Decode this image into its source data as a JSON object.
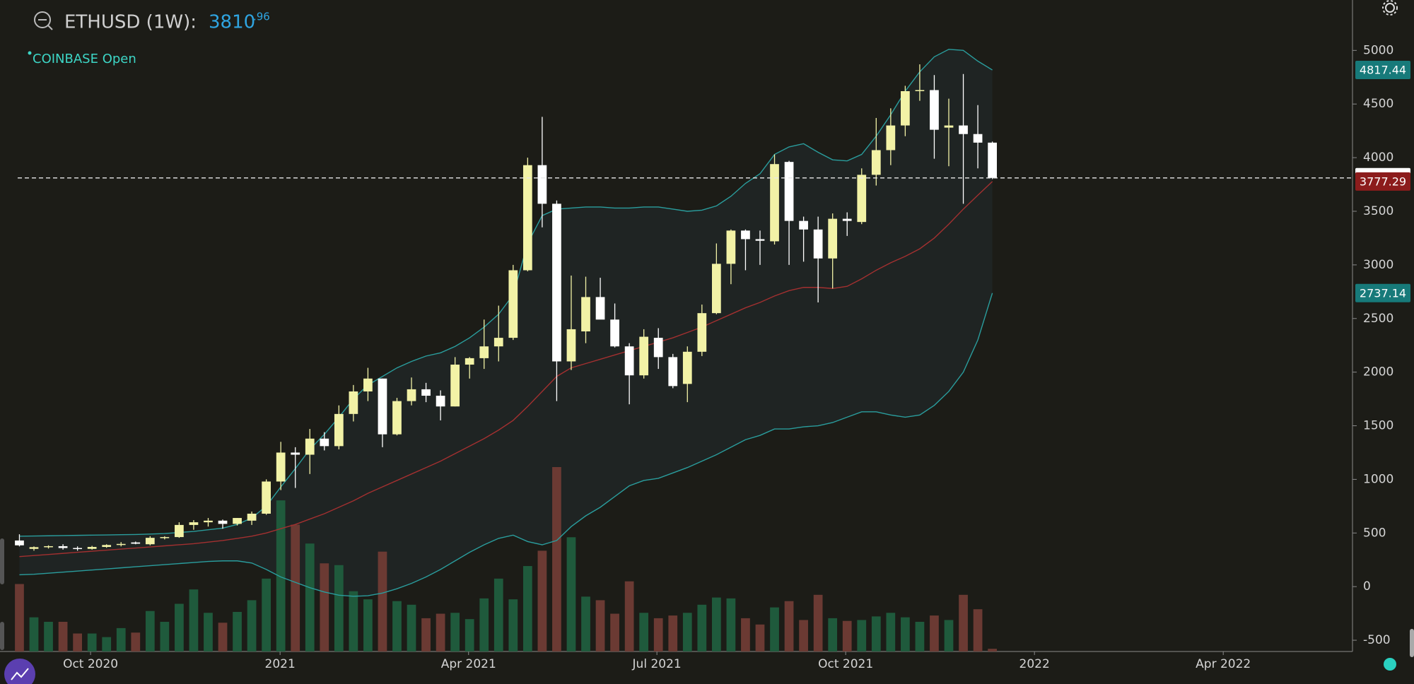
{
  "chart_data": {
    "type": "candlestick",
    "title": "ETHUSD (1W):",
    "price": "3810",
    "price_decimals": ".96",
    "exchange": "COINBASE Open",
    "x": [
      0,
      1,
      2,
      3,
      4,
      5,
      6,
      7,
      8,
      9,
      10,
      11,
      12,
      13,
      14,
      15,
      16,
      17,
      18,
      19,
      20,
      21,
      22,
      23,
      24,
      25,
      26,
      27,
      28,
      29,
      30,
      31,
      32,
      33,
      34,
      35,
      36,
      37,
      38,
      39,
      40,
      41,
      42,
      43,
      44,
      45,
      46,
      47,
      48,
      49,
      50,
      51,
      52,
      53,
      54,
      55,
      56,
      57,
      58,
      59,
      60,
      61,
      62,
      63,
      64,
      65,
      66,
      67
    ],
    "open": [
      430,
      352,
      368,
      377,
      360,
      352,
      370,
      388,
      412,
      395,
      455,
      462,
      575,
      600,
      615,
      585,
      615,
      680,
      980,
      1250,
      1230,
      1380,
      1310,
      1610,
      1820,
      1940,
      1420,
      1730,
      1840,
      1780,
      1680,
      2070,
      2130,
      2240,
      2320,
      2950,
      3930,
      3570,
      2100,
      2380,
      2700,
      2490,
      2240,
      1970,
      2320,
      2140,
      1890,
      2190,
      2550,
      3010,
      3320,
      3240,
      3220,
      3960,
      3410,
      3330,
      3060,
      3430,
      3400,
      3840,
      4070,
      4300,
      4620,
      4630,
      4280,
      4300,
      4220,
      4140
    ],
    "high": [
      488,
      375,
      385,
      395,
      375,
      380,
      395,
      415,
      420,
      470,
      470,
      600,
      620,
      640,
      625,
      640,
      700,
      1000,
      1350,
      1300,
      1470,
      1440,
      1690,
      1880,
      2040,
      1940,
      1760,
      1950,
      1900,
      1830,
      2140,
      2140,
      2490,
      2620,
      3000,
      4000,
      4380,
      3600,
      2900,
      2890,
      2880,
      2640,
      2270,
      2400,
      2410,
      2170,
      2240,
      2630,
      3200,
      3330,
      3330,
      3320,
      4030,
      3970,
      3450,
      3450,
      3480,
      3490,
      3900,
      4370,
      4460,
      4670,
      4870,
      4770,
      4550,
      4780,
      4490,
      4150
    ],
    "low": [
      375,
      335,
      355,
      345,
      335,
      345,
      362,
      375,
      395,
      385,
      440,
      455,
      530,
      560,
      540,
      570,
      575,
      670,
      900,
      920,
      1050,
      1270,
      1280,
      1540,
      1730,
      1300,
      1410,
      1690,
      1720,
      1550,
      1680,
      1940,
      2030,
      2100,
      2300,
      2940,
      3350,
      1730,
      2020,
      2270,
      2520,
      2230,
      1700,
      1940,
      2030,
      1850,
      1720,
      2150,
      2540,
      2820,
      2950,
      3000,
      3190,
      3000,
      3030,
      2650,
      2780,
      3270,
      3380,
      3740,
      3930,
      4200,
      4530,
      3990,
      3920,
      3570,
      3900,
      3800
    ],
    "close": [
      385,
      368,
      377,
      360,
      352,
      370,
      388,
      398,
      400,
      455,
      462,
      575,
      600,
      615,
      585,
      640,
      680,
      980,
      1250,
      1230,
      1380,
      1310,
      1610,
      1820,
      1940,
      1420,
      1730,
      1840,
      1780,
      1680,
      2070,
      2130,
      2240,
      2320,
      2950,
      3930,
      3570,
      2100,
      2400,
      2700,
      2490,
      2240,
      1970,
      2330,
      2140,
      1870,
      2190,
      2550,
      3010,
      3320,
      3240,
      3225,
      3940,
      3410,
      3330,
      3060,
      3430,
      3410,
      3840,
      4070,
      4300,
      4620,
      4630,
      4260,
      4300,
      4220,
      4140,
      3810.96
    ],
    "volume": [
      75,
      38,
      33,
      33,
      20,
      20,
      16,
      26,
      21,
      45,
      33,
      53,
      69,
      43,
      32,
      44,
      57,
      81,
      168,
      141,
      120,
      98,
      96,
      67,
      58,
      111,
      56,
      52,
      37,
      42,
      43,
      36,
      59,
      81,
      58,
      95,
      112,
      205,
      127,
      61,
      57,
      42,
      78,
      43,
      37,
      40,
      43,
      52,
      60,
      59,
      37,
      30,
      49,
      56,
      35,
      63,
      37,
      34,
      35,
      39,
      43,
      38,
      33,
      40,
      35,
      63,
      47,
      3
    ],
    "up_color": "#f2f2a6",
    "down_color": "#ffffff",
    "volume_up_color": "#1f5a3c",
    "volume_down_color": "#6b3a33",
    "bands": {
      "upper": {
        "color": "#2a9d9d",
        "values": [
          470,
          472,
          474,
          476,
          478,
          480,
          482,
          484,
          486,
          490,
          495,
          505,
          515,
          530,
          545,
          580,
          640,
          750,
          930,
          1100,
          1280,
          1420,
          1580,
          1750,
          1880,
          1960,
          2040,
          2100,
          2150,
          2180,
          2240,
          2320,
          2420,
          2540,
          2720,
          3200,
          3460,
          3520,
          3530,
          3540,
          3540,
          3530,
          3530,
          3540,
          3540,
          3520,
          3500,
          3510,
          3550,
          3640,
          3760,
          3850,
          4030,
          4100,
          4130,
          4050,
          3980,
          3970,
          4030,
          4200,
          4400,
          4620,
          4800,
          4940,
          5010,
          5000,
          4900,
          4817.44
        ]
      },
      "middle": {
        "color": "#a33030",
        "values": [
          280,
          290,
          300,
          310,
          320,
          330,
          340,
          350,
          360,
          370,
          380,
          390,
          400,
          415,
          430,
          450,
          470,
          500,
          540,
          580,
          630,
          680,
          740,
          800,
          870,
          930,
          990,
          1050,
          1110,
          1170,
          1240,
          1310,
          1380,
          1460,
          1550,
          1680,
          1820,
          1960,
          2040,
          2080,
          2120,
          2160,
          2200,
          2240,
          2280,
          2320,
          2370,
          2420,
          2480,
          2540,
          2600,
          2650,
          2710,
          2760,
          2790,
          2790,
          2780,
          2800,
          2870,
          2950,
          3020,
          3080,
          3150,
          3250,
          3380,
          3520,
          3650,
          3777.29
        ]
      },
      "lower": {
        "color": "#2a9d9d",
        "values": [
          110,
          115,
          125,
          135,
          145,
          155,
          165,
          175,
          185,
          195,
          205,
          215,
          225,
          235,
          240,
          240,
          220,
          160,
          90,
          40,
          -10,
          -50,
          -80,
          -90,
          -85,
          -60,
          -20,
          30,
          90,
          160,
          240,
          320,
          390,
          450,
          480,
          420,
          390,
          430,
          560,
          660,
          740,
          840,
          940,
          990,
          1010,
          1060,
          1110,
          1170,
          1230,
          1300,
          1370,
          1410,
          1470,
          1470,
          1490,
          1500,
          1530,
          1580,
          1630,
          1630,
          1600,
          1580,
          1600,
          1690,
          1820,
          2000,
          2300,
          2737.14
        ]
      }
    },
    "xlim": [
      -0.12,
      91.8
    ],
    "xticks": [
      {
        "value": 4.9,
        "label": "Oct 2020"
      },
      {
        "value": 17.95,
        "label": "2021"
      },
      {
        "value": 30.93,
        "label": "Apr 2021"
      },
      {
        "value": 43.9,
        "label": "Jul 2021"
      },
      {
        "value": 56.9,
        "label": "Oct 2021"
      },
      {
        "value": 69.9,
        "label": "2022"
      },
      {
        "value": 82.9,
        "label": "Apr 2022"
      }
    ],
    "ylim": [
      -605,
      5470
    ],
    "yticks": [
      -500,
      0,
      500,
      1000,
      1500,
      2000,
      2500,
      3000,
      3500,
      4000,
      4500,
      5000
    ]
  }
}
